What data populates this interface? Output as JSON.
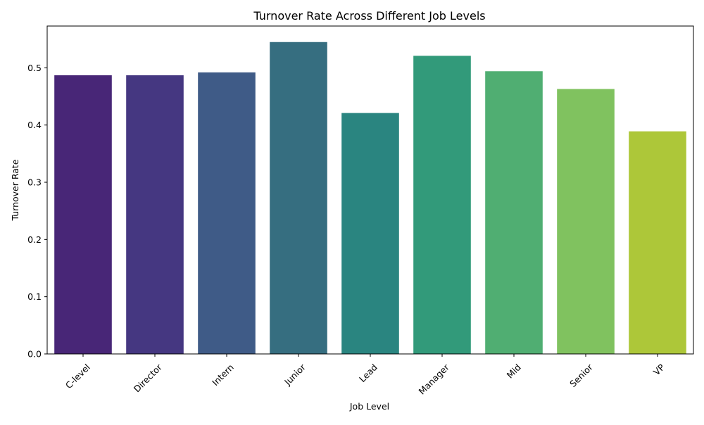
{
  "chart_data": {
    "type": "bar",
    "title": "Turnover Rate Across Different Job Levels",
    "xlabel": "Job Level",
    "ylabel": "Turnover Rate",
    "categories": [
      "C-level",
      "Director",
      "Intern",
      "Junior",
      "Lead",
      "Manager",
      "Mid",
      "Senior",
      "VP"
    ],
    "values": [
      0.487,
      0.487,
      0.492,
      0.545,
      0.421,
      0.521,
      0.494,
      0.463,
      0.389
    ],
    "colors": [
      "#482677",
      "#453781",
      "#3f5b87",
      "#366e80",
      "#2a8580",
      "#329a7a",
      "#50ae72",
      "#80c25f",
      "#adc739"
    ],
    "ylim": [
      0,
      0.573
    ],
    "yticks": [
      0.0,
      0.1,
      0.2,
      0.3,
      0.4,
      0.5
    ],
    "ytick_labels": [
      "0.0",
      "0.1",
      "0.2",
      "0.3",
      "0.4",
      "0.5"
    ],
    "xtick_rotation_deg": 45,
    "grid": false,
    "legend": "none"
  }
}
